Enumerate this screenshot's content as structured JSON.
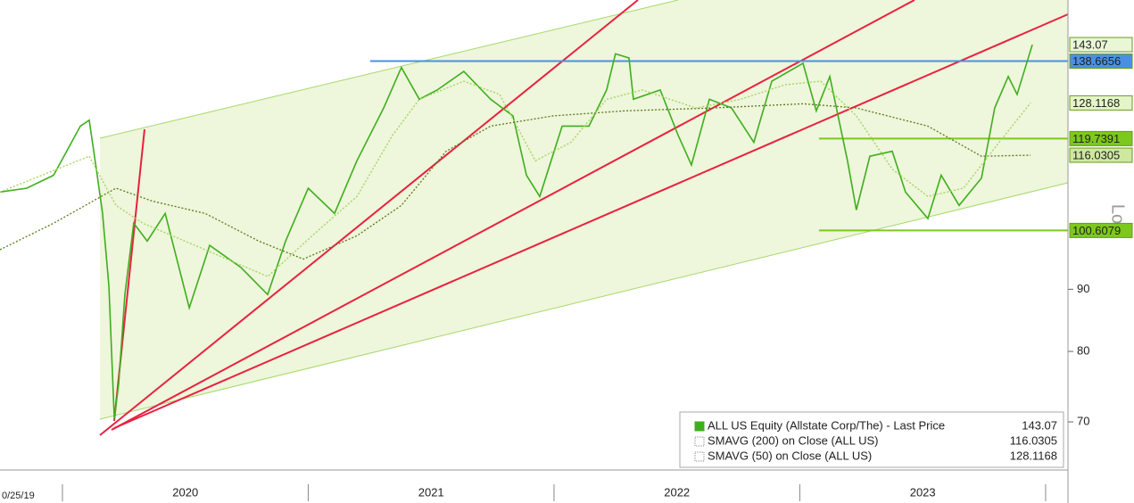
{
  "chart_data": {
    "type": "line",
    "log_scale": true,
    "xlim": [
      2019.746,
      2024.091
    ],
    "ylim": [
      63.9,
      155.7
    ],
    "yticks": [
      70,
      80,
      90
    ],
    "xticks": [
      2020,
      2021,
      2022,
      2023,
      2024
    ],
    "x_labels": [
      "2020",
      "2021",
      "2022",
      "2023"
    ],
    "start_date": "0/25/19",
    "y_axis_label": "Lo",
    "series": [
      {
        "name": "ALL US Equity (Allstate Corp/The) - Last Price",
        "color": "#3fae1e",
        "style": "solid",
        "last_value": 143.07,
        "x": [
          2019.746,
          2019.855,
          2019.964,
          2020.073,
          2020.109,
          2020.138,
          2020.163,
          2020.189,
          2020.211,
          2020.229,
          2020.254,
          2020.29,
          2020.345,
          2020.418,
          2020.516,
          2020.599,
          2020.726,
          2020.835,
          2020.908,
          2021.0,
          2021.107,
          2021.198,
          2021.307,
          2021.379,
          2021.452,
          2021.525,
          2021.633,
          2021.742,
          2021.833,
          2021.888,
          2021.942,
          2022.033,
          2022.142,
          2022.214,
          2022.25,
          2022.305,
          2022.323,
          2022.432,
          2022.505,
          2022.559,
          2022.632,
          2022.722,
          2022.813,
          2022.886,
          2023.013,
          2023.067,
          2023.122,
          2023.194,
          2023.23,
          2023.285,
          2023.376,
          2023.43,
          2023.521,
          2023.575,
          2023.648,
          2023.739,
          2023.793,
          2023.848,
          2023.884,
          2023.946
        ],
        "values": [
          108.2,
          109,
          111.7,
          122.6,
          124,
          113,
          104,
          90.6,
          70.4,
          75.3,
          89.1,
          102,
          98.6,
          103.9,
          86.9,
          97.8,
          93.8,
          89.1,
          98.6,
          109,
          103.9,
          114.8,
          126.9,
          137,
          129,
          131.3,
          136,
          129,
          125,
          111.7,
          107.3,
          122.6,
          122.6,
          131.3,
          140.6,
          139.5,
          129,
          131.3,
          120.5,
          113.9,
          129,
          126.9,
          118.9,
          133.5,
          138.1,
          126.2,
          134.7,
          114.8,
          104.6,
          115.8,
          116.9,
          108.2,
          102.9,
          111.7,
          105.5,
          111.1,
          126.9,
          134.7,
          130.2,
          143.07
        ]
      },
      {
        "name": "SMAVG (200)  on Close (ALL US)",
        "color": "#5a7a1a",
        "style": "dotted",
        "last_value": 116.0305,
        "x": [
          2019.746,
          2019.964,
          2020.218,
          2020.363,
          2020.581,
          2020.799,
          2020.98,
          2021.198,
          2021.379,
          2021.561,
          2021.742,
          2021.996,
          2022.287,
          2022.65,
          2023.013,
          2023.23,
          2023.521,
          2023.739,
          2023.939
        ],
        "values": [
          97,
          102,
          109,
          106.4,
          103.9,
          98.6,
          95.3,
          99.6,
          105.5,
          116.9,
          122.6,
          125,
          126.2,
          126.9,
          127.9,
          126.9,
          122.6,
          115.8,
          116.0305
        ]
      },
      {
        "name": "SMAVG (50)  on Close (ALL US)",
        "color": "#9fd45a",
        "style": "dotted",
        "last_value": 128.1168,
        "x": [
          2019.746,
          2020.109,
          2020.218,
          2020.327,
          2020.581,
          2020.835,
          2021.016,
          2021.198,
          2021.343,
          2021.452,
          2021.633,
          2021.779,
          2021.924,
          2022.069,
          2022.214,
          2022.359,
          2022.577,
          2022.759,
          2022.94,
          2023.085,
          2023.23,
          2023.376,
          2023.521,
          2023.666,
          2023.811,
          2023.939
        ],
        "values": [
          108.2,
          115.8,
          105.5,
          102,
          97,
          92.2,
          99.6,
          107.3,
          120.5,
          129,
          133.5,
          130.2,
          114.8,
          118.9,
          129,
          131.3,
          126.9,
          129,
          132.6,
          133.5,
          125,
          113,
          107.3,
          109,
          118.9,
          128.1168
        ]
      }
    ],
    "levels": [
      {
        "value": 138.6656,
        "start": 2021.252,
        "color": "#4a90e2"
      },
      {
        "value": 119.7391,
        "start": 2023.078,
        "color": "#7dc81e"
      },
      {
        "value": 100.6079,
        "start": 2023.078,
        "color": "#7dc81e"
      }
    ]
  }
}
